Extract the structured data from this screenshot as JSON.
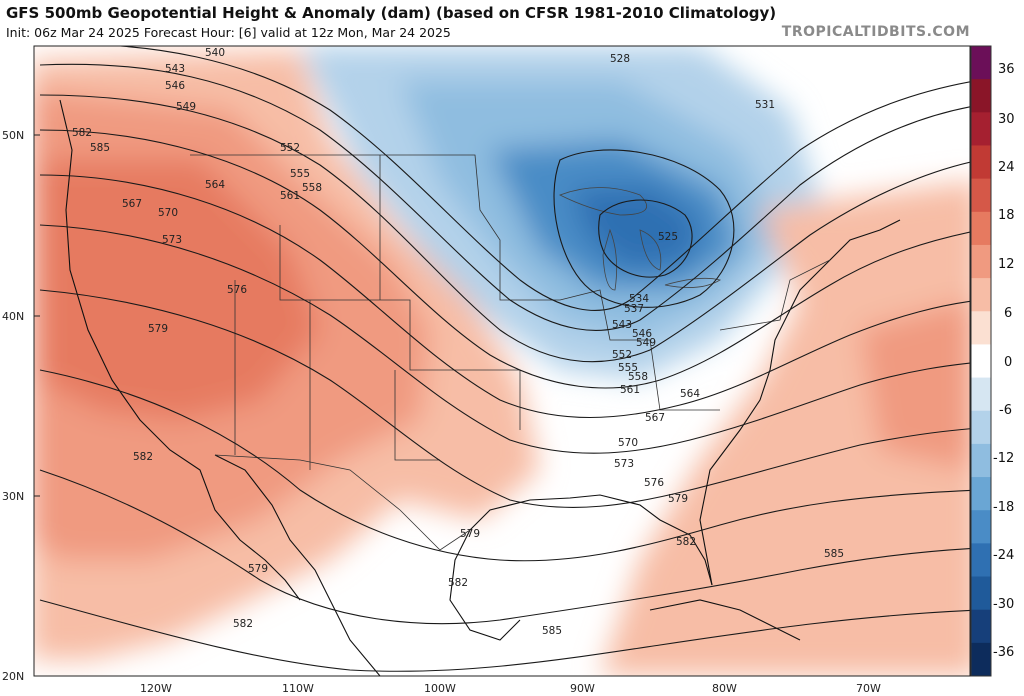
{
  "header": {
    "title": "GFS 500mb Geopotential Height & Anomaly (dam) (based on CFSR 1981-2010 Climatology)",
    "subtitle": "Init: 06z Mar 24 2025   Forecast Hour: [6]   valid at 12z Mon, Mar 24 2025",
    "brand": "TROPICALTIDBITS.COM"
  },
  "axes": {
    "lat_labels": [
      "50N",
      "40N",
      "30N",
      "20N"
    ],
    "lon_labels": [
      "120W",
      "110W",
      "100W",
      "90W",
      "80W",
      "70W"
    ]
  },
  "colorbar": {
    "labels": [
      "36",
      "30",
      "24",
      "18",
      "12",
      "6",
      "0",
      "-6",
      "-12",
      "-18",
      "-24",
      "-30",
      "-36"
    ],
    "colors": [
      "#6b0f58",
      "#8a1528",
      "#a52030",
      "#c13a34",
      "#d55848",
      "#e67a60",
      "#f09a80",
      "#f7bda6",
      "#fbe0d2",
      "#ffffff",
      "#d6e6f2",
      "#b3d2ea",
      "#8fbde0",
      "#6aa6d4",
      "#4a8cc6",
      "#2f70b2",
      "#1f5a9a",
      "#163f7a",
      "#0d2c5c"
    ]
  },
  "contour_labels": [
    "540",
    "543",
    "546",
    "549",
    "552",
    "555",
    "558",
    "561",
    "564",
    "567",
    "570",
    "573",
    "576",
    "579",
    "582",
    "585",
    "528",
    "531",
    "525",
    "534",
    "537",
    "543",
    "546",
    "549",
    "552",
    "555",
    "558",
    "561",
    "564",
    "567",
    "570",
    "573",
    "576",
    "579",
    "582",
    "585",
    "582",
    "579",
    "582",
    "579",
    "582",
    "585"
  ],
  "anomalies": [
    {
      "name": "western-ridge",
      "sign": "positive"
    },
    {
      "name": "great-lakes-trough",
      "sign": "negative"
    },
    {
      "name": "atlantic-ridge",
      "sign": "positive"
    }
  ]
}
